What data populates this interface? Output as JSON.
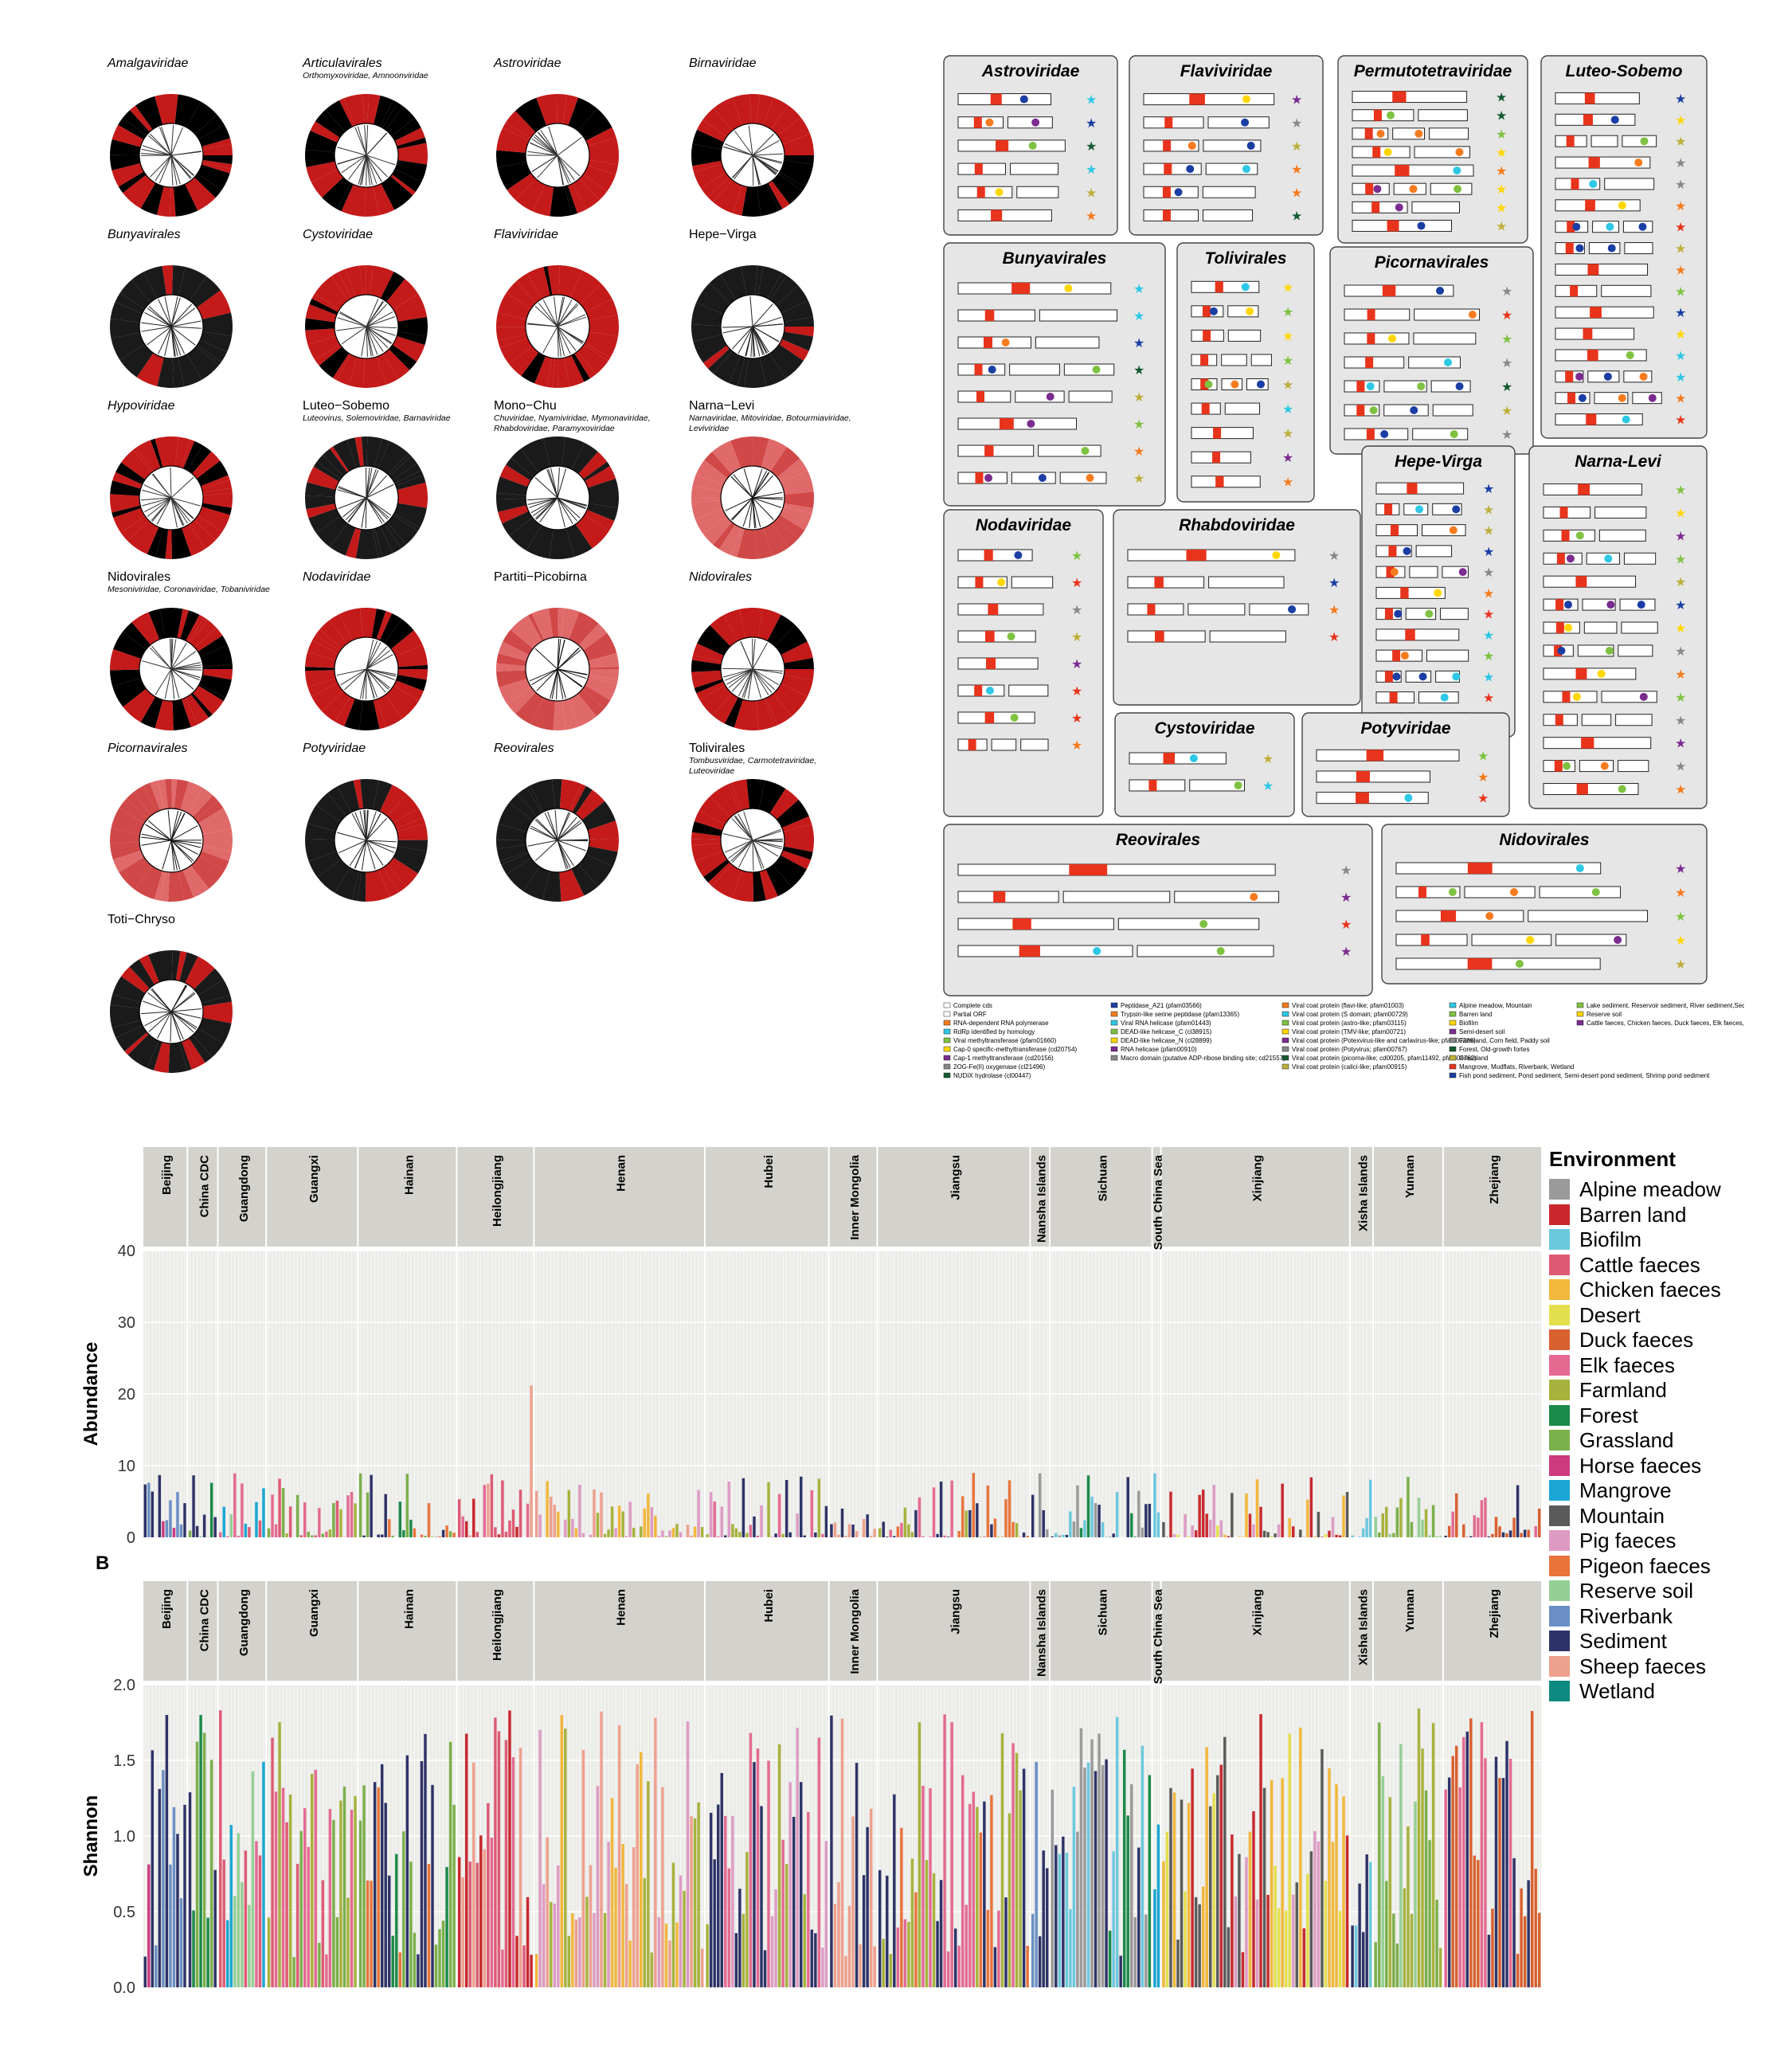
{
  "trees": [
    {
      "name": "Amalgaviridae",
      "italic": true,
      "sub": "",
      "style": "bw"
    },
    {
      "name": "Articulavirales",
      "italic": true,
      "sub": "Orthomyxoviridae, Amnoonviridae",
      "style": "bw"
    },
    {
      "name": "Astroviridae",
      "italic": true,
      "sub": "",
      "style": "red"
    },
    {
      "name": "Birnaviridae",
      "italic": true,
      "sub": "",
      "style": "red"
    },
    {
      "name": "Bunyavirales",
      "italic": true,
      "sub": "",
      "style": "dark"
    },
    {
      "name": "Cystoviridae",
      "italic": true,
      "sub": "",
      "style": "red"
    },
    {
      "name": "Flaviviridae",
      "italic": true,
      "sub": "",
      "style": "red"
    },
    {
      "name": "Hepe−Virga",
      "italic": false,
      "sub": "",
      "style": "dark"
    },
    {
      "name": "Hypoviridae",
      "italic": true,
      "sub": "",
      "style": "red"
    },
    {
      "name": "Luteo−Sobemo",
      "italic": false,
      "sub": "Luteovirus, Solemoviridae, Barnaviridae",
      "style": "dark"
    },
    {
      "name": "Mono−Chu",
      "italic": false,
      "sub": "Chuviridae, Nyamiviridae, Mymonaviridae, Rhabdoviridae, Paramyxoviridae",
      "style": "dark"
    },
    {
      "name": "Narna−Levi",
      "italic": false,
      "sub": "Narnaviridae, Mitoviridae, Botourmiaviridae, Leviviridae",
      "style": "pink"
    },
    {
      "name": "Nidovirales",
      "italic": false,
      "sub": "Mesoniviridae, Coronaviridae, Tobaniviridae",
      "style": "bw"
    },
    {
      "name": "Nodaviridae",
      "italic": true,
      "sub": "",
      "style": "red"
    },
    {
      "name": "Partiti−Picobirna",
      "italic": false,
      "sub": "",
      "style": "pink"
    },
    {
      "name": "Nidovirales",
      "italic": true,
      "sub": "",
      "style": "red"
    },
    {
      "name": "Picornavirales",
      "italic": true,
      "sub": "",
      "style": "pink"
    },
    {
      "name": "Potyviridae",
      "italic": true,
      "sub": "",
      "style": "dark"
    },
    {
      "name": "Reovirales",
      "italic": true,
      "sub": "",
      "style": "dark"
    },
    {
      "name": "Tolivirales",
      "italic": false,
      "sub": "Tombusviridae, Carmotetraviridae, Luteoviridae",
      "style": "red"
    },
    {
      "name": "Toti−Chryso",
      "italic": false,
      "sub": "",
      "style": "dark"
    }
  ],
  "genome_boxes": [
    {
      "title": "Astroviridae",
      "rows": 6
    },
    {
      "title": "Flaviviridae",
      "rows": 6
    },
    {
      "title": "Permutotetraviridae",
      "rows": 8
    },
    {
      "title": "Luteo-Sobemo",
      "rows": 16
    },
    {
      "title": "Bunyavirales",
      "rows": 8
    },
    {
      "title": "Tolivirales",
      "rows": 9
    },
    {
      "title": "Picornavirales",
      "rows": 7
    },
    {
      "title": "Hepe-Virga",
      "rows": 12
    },
    {
      "title": "Narna-Levi",
      "rows": 14
    },
    {
      "title": "Nodaviridae",
      "rows": 8
    },
    {
      "title": "Rhabdoviridae",
      "rows": 4
    },
    {
      "title": "Cystoviridae",
      "rows": 2
    },
    {
      "title": "Potyviridae",
      "rows": 3
    },
    {
      "title": "Reovirales",
      "rows": 4
    },
    {
      "title": "Nidovirales",
      "rows": 5
    }
  ],
  "genome_legend": [
    [
      "Complete cds",
      "Partial ORF",
      "RNA-dependent RNA polymerase",
      "RdRp identified by homology",
      "Viral methyltransferase (pfam01660)",
      "Cap-0 specific-methyltransferase (cd20754)",
      "Cap-1 methyltransferase  (cd20156)",
      "2OG-Fe(II) oxygenase (cl21496)",
      "NUDIX hydrolase (cl00447)"
    ],
    [
      "Peptidase_A21 (pfam03566)",
      "Trypsin-like serine peptidase (pfam13365)",
      "Viral RNA helicase (pfam01443)",
      "DEAD-like helicase_C (cl38915)",
      "DEAD-like helicase_N (cl28899)",
      "RNA helicase (pfam00910)",
      "Macro domain (putative ADP-ribose binding site; cd21557)"
    ],
    [
      "Viral coat protein (flavi-like; pfam01003)",
      "Viral coat protein (S domain; pfam00729)",
      "Viral coat protein (astro-like; pfam03115)",
      "Viral coat protein (TMV-like; pfam00721)",
      "Viral coat protein (Potexvirus-like and carlavirus-like; pfam00286)",
      "Viral coat protein (Potyvirus; pfam00767)",
      "Viral coat protein (picorna-like; cd00205, pfam11492, pfam08762)",
      "Viral coat protein (calici-like; pfam00915)"
    ],
    [
      "Alpine meadow, Mountain",
      "Barren land",
      "Biofilm",
      "Semi-desert soil",
      "Farmland, Corn field, Paddy soil",
      "Forest, Old-growth fortes",
      "Grassland",
      "Mangrove, Mudflats, Riverbank, Wetland",
      "Fish pond sediment, Pond sediment, Semi-desert pond sediment, Shrimp pond sediment"
    ],
    [
      "Lake sediment, Reservoir sediment, River sediment,Sediment",
      "Reserve soil",
      "Cattle faeces, Chicken faeces, Duck faeces, Elk faeces,Horse faeces, Pig faeces, Pigeon faeces, Sheep faeces"
    ]
  ],
  "bottom_panel_letter": "B",
  "legend": {
    "title": "Environment",
    "items": [
      {
        "label": "Alpine meadow",
        "color": "#9a9a9a"
      },
      {
        "label": "Barren land",
        "color": "#c8282d"
      },
      {
        "label": "Biofilm",
        "color": "#6cc8de"
      },
      {
        "label": "Cattle faeces",
        "color": "#de5a74"
      },
      {
        "label": "Chicken faeces",
        "color": "#f2b73b"
      },
      {
        "label": "Desert",
        "color": "#e3df4c"
      },
      {
        "label": "Duck faeces",
        "color": "#d9602f"
      },
      {
        "label": "Elk faeces",
        "color": "#e46a92"
      },
      {
        "label": "Farmland",
        "color": "#a7b23c"
      },
      {
        "label": "Forest",
        "color": "#1b8a4a"
      },
      {
        "label": "Grassland",
        "color": "#7bb04a"
      },
      {
        "label": "Horse faeces",
        "color": "#cc3a80"
      },
      {
        "label": "Mangrove",
        "color": "#1aa7d4"
      },
      {
        "label": "Mountain",
        "color": "#5a5a5a"
      },
      {
        "label": "Pig faeces",
        "color": "#dd9bc3"
      },
      {
        "label": "Pigeon faeces",
        "color": "#e8743b"
      },
      {
        "label": "Reserve soil",
        "color": "#95cf95"
      },
      {
        "label": "Riverbank",
        "color": "#6a8fc4"
      },
      {
        "label": "Sediment",
        "color": "#2d3368"
      },
      {
        "label": "Sheep faeces",
        "color": "#eea08e"
      },
      {
        "label": "Wetland",
        "color": "#0e8a80"
      }
    ]
  },
  "chart_data": [
    {
      "type": "bar",
      "ylabel": "Abundance",
      "ylim": [
        0,
        40
      ],
      "yticks": [
        0,
        10,
        20,
        30,
        40
      ],
      "facets": [
        "Beijing",
        "China CDC",
        "Guangdong",
        "Guangxi",
        "Hainan",
        "Heilongjiang",
        "Henan",
        "Hubei",
        "Inner Mongolia",
        "Jiangsu",
        "Nansha Islands",
        "Sichuan",
        "South China Sea",
        "Xinjiang",
        "Xisha Islands",
        "Yunnan",
        "Zhejiang"
      ],
      "facet_sample_counts": [
        12,
        8,
        13,
        25,
        27,
        21,
        47,
        34,
        13,
        42,
        5,
        28,
        2,
        52,
        6,
        19,
        27
      ],
      "grid": true
    },
    {
      "type": "bar",
      "ylabel": "Shannon",
      "ylim": [
        0,
        2
      ],
      "yticks": [
        "0.0",
        "0.5",
        "1.0",
        "1.5",
        "2.0"
      ],
      "facets": [
        "Beijing",
        "China CDC",
        "Guangdong",
        "Guangxi",
        "Hainan",
        "Heilongjiang",
        "Henan",
        "Hubei",
        "Inner Mongolia",
        "Jiangsu",
        "Nansha Islands",
        "Sichuan",
        "South China Sea",
        "Xinjiang",
        "Xisha Islands",
        "Yunnan",
        "Zhejiang"
      ],
      "facet_sample_counts": [
        12,
        8,
        13,
        25,
        27,
        21,
        47,
        34,
        13,
        42,
        5,
        28,
        2,
        52,
        6,
        19,
        27
      ],
      "grid": true
    }
  ]
}
